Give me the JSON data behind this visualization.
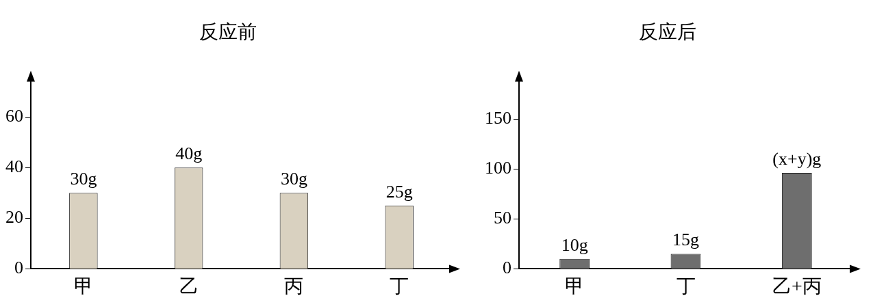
{
  "chart_data": [
    {
      "type": "bar",
      "title": "反应前",
      "categories": [
        "甲",
        "乙",
        "丙",
        "丁"
      ],
      "values": [
        30,
        40,
        30,
        25
      ],
      "value_labels": [
        "30g",
        "40g",
        "30g",
        "25g"
      ],
      "color": "#d9d1c0",
      "ylim": [
        0,
        75
      ],
      "yticks": [
        0,
        20,
        40,
        60
      ],
      "grid": false
    },
    {
      "type": "bar",
      "title": "反应后",
      "categories": [
        "甲",
        "丁",
        "乙+丙"
      ],
      "values": [
        10,
        15,
        96
      ],
      "value_labels": [
        "10g",
        "15g",
        "(x+y)g"
      ],
      "color": "#6e6e6e",
      "ylim": [
        0,
        190
      ],
      "yticks": [
        0,
        50,
        100,
        150
      ],
      "grid": false
    }
  ]
}
